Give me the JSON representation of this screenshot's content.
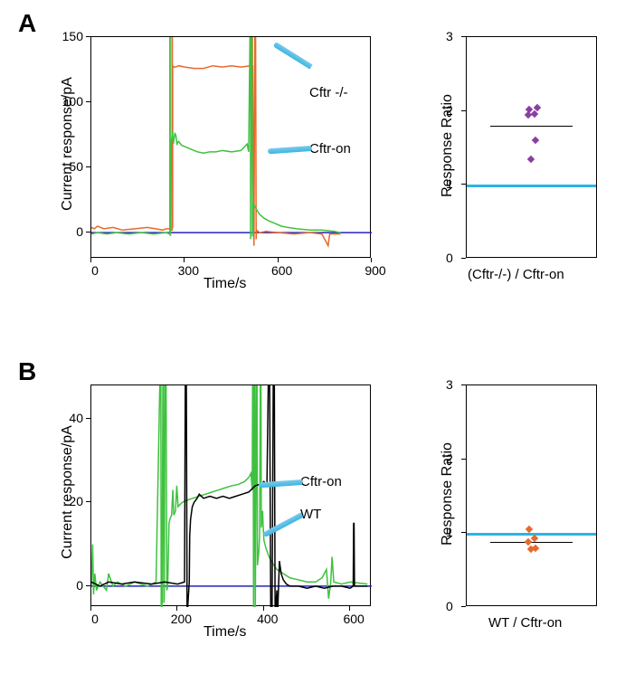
{
  "panelA": {
    "letter": "A",
    "line_chart": {
      "type": "line",
      "ylabel": "Current response/pA",
      "xlabel": "Time/s",
      "label_fontsize": 16,
      "tick_fontsize": 14,
      "xlim": [
        0,
        900
      ],
      "xticks": [
        0,
        300,
        600,
        900
      ],
      "ylim": [
        -20,
        150
      ],
      "yticks": [
        0,
        50,
        100,
        150
      ],
      "zero_line_color": "#2323bb",
      "zero_line_width": 1.5,
      "background_color": "#ffffff",
      "series": [
        {
          "name": "Cftr -/-",
          "label": "Cftr -/-",
          "color": "#e56a2d",
          "line_width": 1.5,
          "callout_color": "#39b6e5",
          "data": [
            [
              0,
              4
            ],
            [
              10,
              3
            ],
            [
              20,
              5
            ],
            [
              40,
              3
            ],
            [
              70,
              4
            ],
            [
              100,
              2
            ],
            [
              140,
              3
            ],
            [
              180,
              4
            ],
            [
              230,
              2
            ],
            [
              240,
              3
            ],
            [
              250,
              3
            ],
            [
              259,
              2
            ],
            [
              259,
              170
            ],
            [
              260,
              170
            ],
            [
              260,
              4
            ],
            [
              261,
              4
            ],
            [
              261,
              128
            ],
            [
              265,
              127
            ],
            [
              270,
              127
            ],
            [
              280,
              128
            ],
            [
              300,
              127
            ],
            [
              330,
              126
            ],
            [
              360,
              126
            ],
            [
              390,
              128
            ],
            [
              420,
              127
            ],
            [
              450,
              128
            ],
            [
              480,
              127
            ],
            [
              510,
              128
            ],
            [
              516,
              128
            ],
            [
              516,
              170
            ],
            [
              517,
              170
            ],
            [
              517,
              128
            ],
            [
              518,
              128
            ],
            [
              522,
              -10
            ],
            [
              525,
              170
            ],
            [
              527,
              170
            ],
            [
              529,
              -5
            ],
            [
              530,
              2
            ],
            [
              540,
              0
            ],
            [
              560,
              1
            ],
            [
              600,
              0
            ],
            [
              650,
              -1
            ],
            [
              700,
              0
            ],
            [
              740,
              -1
            ],
            [
              760,
              -10
            ],
            [
              765,
              -1
            ],
            [
              800,
              -1
            ]
          ]
        },
        {
          "name": "Cftr-on",
          "label": "Cftr-on",
          "color": "#3fc13f",
          "line_width": 1.5,
          "callout_color": "#39b6e5",
          "data": [
            [
              0,
              -1
            ],
            [
              20,
              0
            ],
            [
              50,
              -1
            ],
            [
              80,
              0
            ],
            [
              120,
              -1
            ],
            [
              160,
              0
            ],
            [
              200,
              -1
            ],
            [
              240,
              0
            ],
            [
              252,
              -1
            ],
            [
              252,
              170
            ],
            [
              253,
              170
            ],
            [
              253,
              -2
            ],
            [
              254,
              -2
            ],
            [
              255,
              70
            ],
            [
              256,
              70
            ],
            [
              258,
              72
            ],
            [
              260,
              78
            ],
            [
              263,
              68
            ],
            [
              268,
              76
            ],
            [
              271,
              75
            ],
            [
              275,
              68
            ],
            [
              280,
              70
            ],
            [
              290,
              67
            ],
            [
              300,
              66
            ],
            [
              320,
              64
            ],
            [
              340,
              62
            ],
            [
              360,
              61
            ],
            [
              380,
              62
            ],
            [
              400,
              62
            ],
            [
              420,
              63
            ],
            [
              450,
              62
            ],
            [
              480,
              63
            ],
            [
              500,
              68
            ],
            [
              505,
              62
            ],
            [
              510,
              170
            ],
            [
              511,
              170
            ],
            [
              511,
              -5
            ],
            [
              513,
              170
            ],
            [
              515,
              170
            ],
            [
              517,
              -3
            ],
            [
              520,
              22
            ],
            [
              525,
              20
            ],
            [
              532,
              17
            ],
            [
              540,
              14
            ],
            [
              555,
              11
            ],
            [
              570,
              9
            ],
            [
              590,
              7
            ],
            [
              610,
              5
            ],
            [
              630,
              4
            ],
            [
              660,
              3
            ],
            [
              700,
              2
            ],
            [
              740,
              2
            ],
            [
              780,
              1
            ],
            [
              800,
              0
            ]
          ]
        }
      ]
    },
    "scatter_chart": {
      "type": "scatter",
      "ylabel": "Response Ratio",
      "xlabel": "(Cftr-/-) / Cftr-on",
      "label_fontsize": 16,
      "tick_fontsize": 14,
      "ylim": [
        0,
        3
      ],
      "yticks": [
        0,
        1,
        2,
        3
      ],
      "background_color": "#ffffff",
      "ref_line": {
        "y": 1.0,
        "color": "#29b4e8",
        "width": 3
      },
      "mean_line": {
        "y": 1.8,
        "color": "#000000",
        "width": 1
      },
      "points": {
        "color": "#8a3fa1",
        "size": 6,
        "values": [
          1.35,
          1.6,
          1.95,
          1.96,
          2.02,
          2.05
        ]
      }
    }
  },
  "panelB": {
    "letter": "B",
    "line_chart": {
      "type": "line",
      "ylabel": "Current response/pA",
      "xlabel": "Time/s",
      "label_fontsize": 16,
      "tick_fontsize": 14,
      "xlim": [
        0,
        650
      ],
      "xticks": [
        0,
        200,
        400,
        600
      ],
      "ylim": [
        -5,
        48
      ],
      "yticks": [
        0,
        20,
        40
      ],
      "zero_line_color": "#2323bb",
      "zero_line_width": 1.5,
      "background_color": "#ffffff",
      "series": [
        {
          "name": "Cftr-on",
          "label": "Cftr-on",
          "color": "#3fc13f",
          "line_width": 1.5,
          "callout_color": "#39b6e5",
          "data": [
            [
              0,
              0
            ],
            [
              3,
              10
            ],
            [
              5,
              -2
            ],
            [
              8,
              3
            ],
            [
              12,
              -1
            ],
            [
              20,
              1
            ],
            [
              35,
              -1
            ],
            [
              40,
              3
            ],
            [
              50,
              0
            ],
            [
              60,
              1
            ],
            [
              80,
              0
            ],
            [
              100,
              1
            ],
            [
              130,
              0
            ],
            [
              150,
              1
            ],
            [
              160,
              55
            ],
            [
              161,
              55
            ],
            [
              162,
              -8
            ],
            [
              164,
              -4
            ],
            [
              166,
              55
            ],
            [
              167,
              55
            ],
            [
              168,
              -4
            ],
            [
              169,
              -3
            ],
            [
              171,
              55
            ],
            [
              173,
              55
            ],
            [
              175,
              -1
            ],
            [
              177,
              0
            ],
            [
              180,
              15
            ],
            [
              182,
              16
            ],
            [
              186,
              17
            ],
            [
              189,
              23
            ],
            [
              191,
              17
            ],
            [
              195,
              18
            ],
            [
              198,
              24
            ],
            [
              201,
              19
            ],
            [
              210,
              20
            ],
            [
              220,
              20.5
            ],
            [
              235,
              21
            ],
            [
              250,
              21.5
            ],
            [
              265,
              22
            ],
            [
              280,
              22.5
            ],
            [
              295,
              23
            ],
            [
              310,
              23.5
            ],
            [
              325,
              24
            ],
            [
              340,
              24.3
            ],
            [
              355,
              25
            ],
            [
              365,
              26
            ],
            [
              370,
              27
            ],
            [
              373,
              23
            ],
            [
              374,
              55
            ],
            [
              375,
              55
            ],
            [
              376,
              -8
            ],
            [
              378,
              55
            ],
            [
              379,
              55
            ],
            [
              380,
              -8
            ],
            [
              383,
              55
            ],
            [
              384,
              55
            ],
            [
              385,
              5
            ],
            [
              388,
              8
            ],
            [
              390,
              12
            ],
            [
              392,
              55
            ],
            [
              393,
              55
            ],
            [
              394,
              14
            ],
            [
              397,
              18
            ],
            [
              398,
              15
            ],
            [
              400,
              11
            ],
            [
              405,
              9
            ],
            [
              412,
              7
            ],
            [
              420,
              5.5
            ],
            [
              430,
              4
            ],
            [
              445,
              3
            ],
            [
              460,
              2
            ],
            [
              480,
              1.5
            ],
            [
              500,
              1
            ],
            [
              520,
              1
            ],
            [
              535,
              2
            ],
            [
              545,
              4
            ],
            [
              550,
              -3
            ],
            [
              555,
              1
            ],
            [
              558,
              7
            ],
            [
              562,
              1
            ],
            [
              580,
              0.5
            ],
            [
              600,
              1
            ],
            [
              640,
              0.5
            ]
          ]
        },
        {
          "name": "WT",
          "label": "WT",
          "color": "#000000",
          "line_width": 1.5,
          "callout_color": "#39b6e5",
          "data": [
            [
              0,
              1
            ],
            [
              20,
              0
            ],
            [
              40,
              1
            ],
            [
              70,
              0.5
            ],
            [
              100,
              1
            ],
            [
              140,
              0.5
            ],
            [
              170,
              1
            ],
            [
              200,
              0.5
            ],
            [
              216,
              1
            ],
            [
              218,
              55
            ],
            [
              220,
              55
            ],
            [
              222,
              -8
            ],
            [
              224,
              -4
            ],
            [
              227,
              1
            ],
            [
              228,
              12
            ],
            [
              230,
              16
            ],
            [
              234,
              19
            ],
            [
              238,
              20
            ],
            [
              245,
              21
            ],
            [
              250,
              22
            ],
            [
              260,
              21
            ],
            [
              275,
              21.5
            ],
            [
              290,
              21
            ],
            [
              305,
              21.5
            ],
            [
              320,
              21
            ],
            [
              335,
              21.5
            ],
            [
              350,
              22
            ],
            [
              365,
              22.5
            ],
            [
              380,
              24
            ],
            [
              395,
              24.5
            ],
            [
              400,
              25
            ],
            [
              407,
              24
            ],
            [
              411,
              55
            ],
            [
              413,
              55
            ],
            [
              416,
              -8
            ],
            [
              419,
              -5
            ],
            [
              422,
              55
            ],
            [
              424,
              55
            ],
            [
              426,
              -8
            ],
            [
              430,
              -1
            ],
            [
              431,
              -12
            ],
            [
              433,
              -3
            ],
            [
              436,
              6
            ],
            [
              440,
              3
            ],
            [
              445,
              1.5
            ],
            [
              452,
              0.5
            ],
            [
              460,
              0
            ],
            [
              480,
              0
            ],
            [
              500,
              -0.5
            ],
            [
              520,
              0
            ],
            [
              540,
              -0.5
            ],
            [
              560,
              0
            ],
            [
              580,
              0
            ],
            [
              600,
              -0.5
            ],
            [
              607,
              0
            ],
            [
              608,
              15
            ],
            [
              609,
              15
            ],
            [
              610,
              0
            ],
            [
              625,
              0
            ],
            [
              640,
              0
            ]
          ]
        }
      ]
    },
    "scatter_chart": {
      "type": "scatter",
      "ylabel": "Response Ratio",
      "xlabel": "WT / Cftr-on",
      "label_fontsize": 16,
      "tick_fontsize": 14,
      "ylim": [
        0,
        3
      ],
      "yticks": [
        0,
        1,
        2,
        3
      ],
      "background_color": "#ffffff",
      "ref_line": {
        "y": 1.0,
        "color": "#29b4e8",
        "width": 3
      },
      "mean_line": {
        "y": 0.88,
        "color": "#000000",
        "width": 1
      },
      "points": {
        "color": "#e56a2d",
        "size": 6,
        "values": [
          0.78,
          0.8,
          0.88,
          0.93,
          1.05
        ]
      }
    }
  }
}
